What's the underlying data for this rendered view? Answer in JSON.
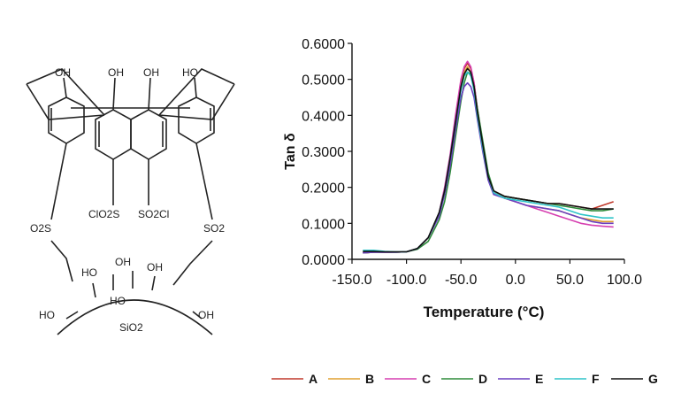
{
  "molecule": {
    "oh_top": [
      "OH",
      "OH",
      "OH",
      "HO"
    ],
    "sulfonyl_left_outer": "O2S",
    "sulfonyl_right_outer": "SO2",
    "sulfonyl_left_inner": "ClO2S",
    "sulfonyl_right_inner": "SO2Cl",
    "silica_oh": [
      "HO",
      "HO",
      "OH",
      "OH",
      "HO",
      "OH"
    ],
    "support_label": "SiO2"
  },
  "chart_data": {
    "type": "line",
    "xlabel": "Temperature (°C)",
    "ylabel": "Tan δ",
    "xlim": [
      -150,
      100
    ],
    "ylim": [
      0,
      0.6
    ],
    "x_ticks": [
      "-150.0",
      "-100.0",
      "-50.0",
      "0.0",
      "50.0",
      "100.0"
    ],
    "y_ticks": [
      "0.0000",
      "0.1000",
      "0.2000",
      "0.3000",
      "0.4000",
      "0.5000",
      "0.6000"
    ],
    "grid": false,
    "legend_position": "bottom",
    "series": [
      {
        "name": "A",
        "color": "#c0392b",
        "x": [
          -140,
          -130,
          -120,
          -110,
          -100,
          -90,
          -80,
          -70,
          -65,
          -60,
          -55,
          -50,
          -47,
          -44,
          -41,
          -38,
          -35,
          -30,
          -25,
          -20,
          -10,
          0,
          10,
          20,
          30,
          40,
          50,
          60,
          70,
          80,
          90
        ],
        "y": [
          0.018,
          0.02,
          0.02,
          0.02,
          0.021,
          0.03,
          0.06,
          0.13,
          0.19,
          0.28,
          0.39,
          0.49,
          0.53,
          0.545,
          0.53,
          0.49,
          0.42,
          0.32,
          0.23,
          0.19,
          0.175,
          0.17,
          0.165,
          0.16,
          0.155,
          0.155,
          0.15,
          0.145,
          0.14,
          0.15,
          0.16
        ]
      },
      {
        "name": "B",
        "color": "#e0a030",
        "x": [
          -140,
          -130,
          -120,
          -110,
          -100,
          -90,
          -80,
          -70,
          -65,
          -60,
          -55,
          -50,
          -47,
          -44,
          -41,
          -38,
          -35,
          -30,
          -25,
          -20,
          -10,
          0,
          10,
          20,
          30,
          40,
          50,
          60,
          70,
          80,
          90
        ],
        "y": [
          0.018,
          0.02,
          0.02,
          0.02,
          0.021,
          0.03,
          0.06,
          0.13,
          0.19,
          0.28,
          0.39,
          0.48,
          0.52,
          0.535,
          0.52,
          0.48,
          0.41,
          0.31,
          0.23,
          0.185,
          0.17,
          0.16,
          0.15,
          0.145,
          0.14,
          0.135,
          0.125,
          0.115,
          0.11,
          0.105,
          0.105
        ]
      },
      {
        "name": "C",
        "color": "#d63fb0",
        "x": [
          -140,
          -130,
          -120,
          -110,
          -100,
          -90,
          -80,
          -70,
          -65,
          -60,
          -55,
          -50,
          -47,
          -44,
          -41,
          -38,
          -35,
          -30,
          -25,
          -20,
          -10,
          0,
          10,
          20,
          30,
          40,
          50,
          60,
          70,
          80,
          90
        ],
        "y": [
          0.018,
          0.02,
          0.02,
          0.02,
          0.021,
          0.03,
          0.06,
          0.13,
          0.2,
          0.29,
          0.4,
          0.5,
          0.535,
          0.55,
          0.535,
          0.49,
          0.42,
          0.32,
          0.23,
          0.185,
          0.17,
          0.16,
          0.15,
          0.14,
          0.13,
          0.12,
          0.11,
          0.1,
          0.095,
          0.092,
          0.09
        ]
      },
      {
        "name": "D",
        "color": "#2e8b3a",
        "x": [
          -140,
          -130,
          -120,
          -110,
          -100,
          -90,
          -80,
          -70,
          -65,
          -60,
          -55,
          -50,
          -47,
          -44,
          -41,
          -38,
          -35,
          -30,
          -25,
          -20,
          -10,
          0,
          10,
          20,
          30,
          40,
          50,
          60,
          70,
          80,
          90
        ],
        "y": [
          0.018,
          0.02,
          0.02,
          0.02,
          0.021,
          0.028,
          0.05,
          0.11,
          0.16,
          0.24,
          0.34,
          0.44,
          0.49,
          0.52,
          0.515,
          0.48,
          0.42,
          0.33,
          0.24,
          0.19,
          0.175,
          0.17,
          0.165,
          0.16,
          0.155,
          0.15,
          0.145,
          0.14,
          0.135,
          0.135,
          0.14
        ]
      },
      {
        "name": "E",
        "color": "#6a3fc0",
        "x": [
          -140,
          -130,
          -120,
          -110,
          -100,
          -90,
          -80,
          -70,
          -65,
          -60,
          -55,
          -50,
          -47,
          -44,
          -41,
          -38,
          -35,
          -30,
          -25,
          -20,
          -10,
          0,
          10,
          20,
          30,
          40,
          50,
          60,
          70,
          80,
          90
        ],
        "y": [
          0.018,
          0.02,
          0.02,
          0.02,
          0.021,
          0.03,
          0.06,
          0.12,
          0.18,
          0.26,
          0.36,
          0.45,
          0.48,
          0.49,
          0.48,
          0.45,
          0.39,
          0.3,
          0.22,
          0.18,
          0.17,
          0.16,
          0.15,
          0.145,
          0.14,
          0.135,
          0.125,
          0.115,
          0.105,
          0.1,
          0.1
        ]
      },
      {
        "name": "F",
        "color": "#2ec4c8",
        "x": [
          -140,
          -130,
          -120,
          -110,
          -100,
          -90,
          -80,
          -70,
          -65,
          -60,
          -55,
          -50,
          -47,
          -44,
          -41,
          -38,
          -35,
          -30,
          -25,
          -20,
          -10,
          0,
          10,
          20,
          30,
          40,
          50,
          60,
          70,
          80,
          90
        ],
        "y": [
          0.025,
          0.025,
          0.022,
          0.021,
          0.021,
          0.03,
          0.06,
          0.13,
          0.19,
          0.28,
          0.38,
          0.47,
          0.51,
          0.52,
          0.51,
          0.47,
          0.4,
          0.31,
          0.23,
          0.185,
          0.17,
          0.165,
          0.16,
          0.155,
          0.15,
          0.145,
          0.135,
          0.125,
          0.12,
          0.115,
          0.115
        ]
      },
      {
        "name": "G",
        "color": "#111111",
        "x": [
          -140,
          -130,
          -120,
          -110,
          -100,
          -90,
          -80,
          -70,
          -65,
          -60,
          -55,
          -50,
          -47,
          -44,
          -41,
          -38,
          -35,
          -30,
          -25,
          -20,
          -10,
          0,
          10,
          20,
          30,
          40,
          50,
          60,
          70,
          80,
          90
        ],
        "y": [
          0.022,
          0.022,
          0.021,
          0.021,
          0.021,
          0.03,
          0.06,
          0.13,
          0.19,
          0.28,
          0.38,
          0.48,
          0.515,
          0.53,
          0.52,
          0.48,
          0.41,
          0.32,
          0.23,
          0.19,
          0.175,
          0.17,
          0.165,
          0.16,
          0.155,
          0.155,
          0.15,
          0.145,
          0.14,
          0.14,
          0.14
        ]
      }
    ]
  }
}
